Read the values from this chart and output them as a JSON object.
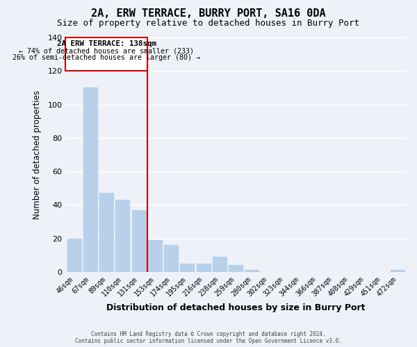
{
  "title": "2A, ERW TERRACE, BURRY PORT, SA16 0DA",
  "subtitle": "Size of property relative to detached houses in Burry Port",
  "xlabel": "Distribution of detached houses by size in Burry Port",
  "ylabel": "Number of detached properties",
  "bar_color": "#b8d0ea",
  "bar_edge_color": "#b8d0ea",
  "categories": [
    "46sqm",
    "67sqm",
    "89sqm",
    "110sqm",
    "131sqm",
    "153sqm",
    "174sqm",
    "195sqm",
    "216sqm",
    "238sqm",
    "259sqm",
    "280sqm",
    "302sqm",
    "323sqm",
    "344sqm",
    "366sqm",
    "387sqm",
    "408sqm",
    "429sqm",
    "451sqm",
    "472sqm"
  ],
  "values": [
    20,
    110,
    47,
    43,
    37,
    19,
    16,
    5,
    5,
    9,
    4,
    1,
    0,
    0,
    0,
    0,
    0,
    0,
    0,
    0,
    1
  ],
  "ylim": [
    0,
    140
  ],
  "yticks": [
    0,
    20,
    40,
    60,
    80,
    100,
    120,
    140
  ],
  "marker_bar_index": 4,
  "marker_color": "#cc0000",
  "annotation_line1": "2A ERW TERRACE: 138sqm",
  "annotation_line2": "← 74% of detached houses are smaller (233)",
  "annotation_line3": "26% of semi-detached houses are larger (80) →",
  "annotation_box_color": "#ffffff",
  "annotation_box_edge": "#cc0000",
  "footer1": "Contains HM Land Registry data © Crown copyright and database right 2024.",
  "footer2": "Contains public sector information licensed under the Open Government Licence v3.0.",
  "background_color": "#eef2f8",
  "grid_color": "#ffffff"
}
